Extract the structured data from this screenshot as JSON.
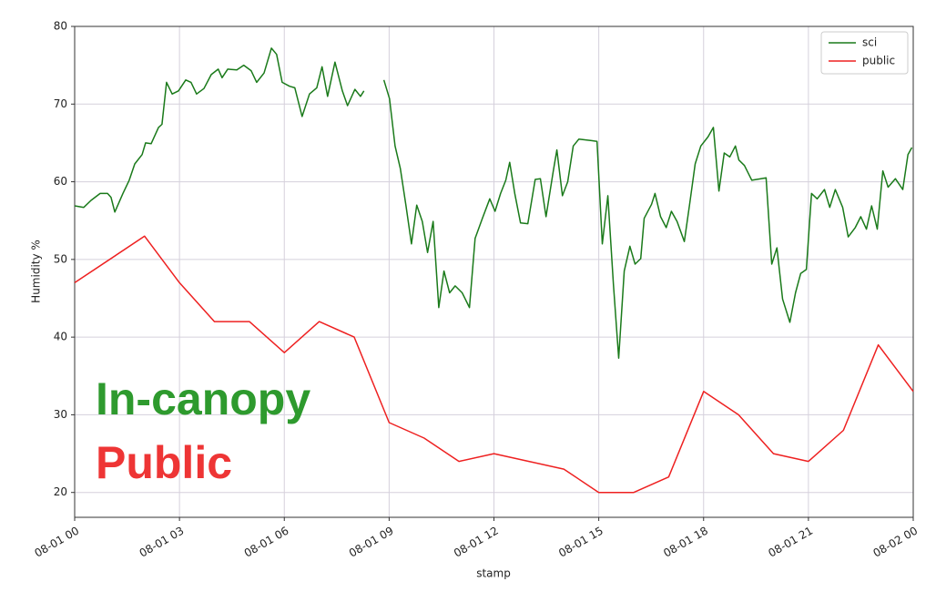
{
  "chart_data": {
    "type": "line",
    "y_label": "Humidity %",
    "x_label": "stamp",
    "xlim": [
      0,
      24
    ],
    "ylim": [
      16.8,
      80
    ],
    "xticks": [
      {
        "value": 0,
        "label": "08-01 00"
      },
      {
        "value": 3,
        "label": "08-01 03"
      },
      {
        "value": 6,
        "label": "08-01 06"
      },
      {
        "value": 9,
        "label": "08-01 09"
      },
      {
        "value": 12,
        "label": "08-01 12"
      },
      {
        "value": 15,
        "label": "08-01 15"
      },
      {
        "value": 18,
        "label": "08-01 18"
      },
      {
        "value": 21,
        "label": "08-01 21"
      },
      {
        "value": 24,
        "label": "08-02 00"
      }
    ],
    "yticks": [
      20,
      30,
      40,
      50,
      60,
      70,
      80
    ],
    "grid": true,
    "legend": "upper right",
    "annotations": [
      {
        "text": "In-canopy",
        "color": "#2e9a2e"
      },
      {
        "text": "Public",
        "color": "#ee3535"
      }
    ],
    "series": [
      {
        "name": "sci",
        "color": "#1a7a1a",
        "x": [
          0,
          0.26,
          0.47,
          0.73,
          0.94,
          1.04,
          1.15,
          1.38,
          1.56,
          1.72,
          1.93,
          2.03,
          2.19,
          2.4,
          2.5,
          2.63,
          2.79,
          2.97,
          3.18,
          3.33,
          3.49,
          3.7,
          3.91,
          4.11,
          4.22,
          4.38,
          4.64,
          4.84,
          5.05,
          5.21,
          5.42,
          5.63,
          5.78,
          5.94,
          6.15,
          6.3,
          6.51,
          6.72,
          6.93,
          7.08,
          7.24,
          7.45,
          7.66,
          7.81,
          8.02,
          8.18,
          8.28,
          8.5,
          8.85,
          9.01,
          9.17,
          9.32,
          9.48,
          9.64,
          9.79,
          9.95,
          10.1,
          10.26,
          10.42,
          10.57,
          10.73,
          10.89,
          11.09,
          11.3,
          11.46,
          11.67,
          11.88,
          12.03,
          12.19,
          12.34,
          12.45,
          12.6,
          12.76,
          12.97,
          13.18,
          13.33,
          13.49,
          13.7,
          13.8,
          13.96,
          14.11,
          14.27,
          14.43,
          14.79,
          14.95,
          15.1,
          15.26,
          15.42,
          15.57,
          15.73,
          15.89,
          16.04,
          16.2,
          16.3,
          16.51,
          16.61,
          16.77,
          16.93,
          17.08,
          17.24,
          17.45,
          17.6,
          17.76,
          17.92,
          18.13,
          18.28,
          18.44,
          18.59,
          18.75,
          18.91,
          19.01,
          19.17,
          19.38,
          19.64,
          19.79,
          19.95,
          20.1,
          20.26,
          20.47,
          20.63,
          20.78,
          20.94,
          21.09,
          21.25,
          21.46,
          21.61,
          21.77,
          21.98,
          22.14,
          22.34,
          22.5,
          22.66,
          22.81,
          22.97,
          23.13,
          23.28,
          23.49,
          23.7,
          23.85,
          23.96
        ],
        "values": [
          56.9,
          56.7,
          57.6,
          58.5,
          58.5,
          58.0,
          56.1,
          58.5,
          60.2,
          62.3,
          63.5,
          65.0,
          64.9,
          67.0,
          67.4,
          72.8,
          71.3,
          71.7,
          73.1,
          72.8,
          71.3,
          72.0,
          73.8,
          74.5,
          73.4,
          74.5,
          74.4,
          75.0,
          74.3,
          72.8,
          74.0,
          77.2,
          76.4,
          72.8,
          72.3,
          72.1,
          68.4,
          71.3,
          72.1,
          74.8,
          71.0,
          75.4,
          71.7,
          69.8,
          71.9,
          71.0,
          71.7,
          null,
          73.1,
          70.7,
          64.6,
          61.7,
          57.0,
          52.0,
          57.0,
          54.9,
          50.9,
          54.9,
          43.8,
          48.5,
          45.7,
          46.6,
          45.7,
          43.8,
          52.7,
          55.3,
          57.8,
          56.2,
          58.5,
          60.2,
          62.5,
          58.4,
          54.7,
          54.6,
          60.3,
          60.4,
          55.5,
          61.4,
          64.1,
          58.2,
          60.0,
          64.6,
          65.5,
          65.3,
          65.2,
          52.0,
          58.2,
          46.8,
          37.3,
          48.5,
          51.7,
          49.4,
          50.1,
          55.3,
          57.1,
          58.5,
          55.5,
          54.1,
          56.2,
          54.9,
          52.3,
          57.1,
          62.3,
          64.6,
          65.8,
          67.0,
          58.8,
          63.7,
          63.2,
          64.6,
          62.8,
          62.1,
          60.2,
          60.4,
          60.5,
          49.4,
          51.5,
          44.9,
          41.9,
          45.7,
          48.2,
          48.7,
          58.5,
          57.8,
          59.0,
          56.7,
          59.0,
          56.7,
          52.9,
          54.1,
          55.5,
          53.9,
          56.9,
          53.9,
          61.4,
          59.3,
          60.4,
          59.0,
          63.5,
          64.4
        ]
      },
      {
        "name": "public",
        "color": "#ee2020",
        "x": [
          0,
          2,
          3,
          4,
          5,
          6,
          7,
          8,
          9,
          10,
          11,
          12,
          13,
          14,
          15,
          16,
          17,
          18,
          19,
          20,
          21,
          22,
          23,
          24
        ],
        "values": [
          47,
          53,
          47,
          42,
          42,
          38,
          42,
          40,
          29,
          27,
          24,
          25,
          24,
          23,
          20,
          20,
          22,
          33,
          30,
          25,
          24,
          28,
          39,
          33
        ]
      }
    ]
  }
}
